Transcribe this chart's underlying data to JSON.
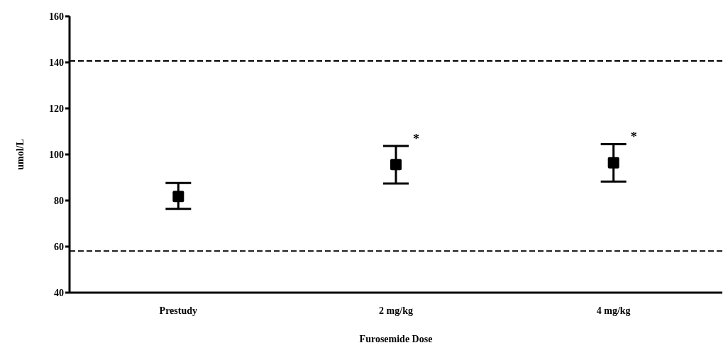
{
  "chart_data": {
    "type": "scatter",
    "xlabel": "Furosemide Dose",
    "ylabel": "umol/L",
    "categories": [
      "Prestudy",
      "2 mg/kg",
      "4 mg/kg"
    ],
    "values": [
      81.8,
      95.6,
      96.4
    ],
    "color": "#000000",
    "marker": "square",
    "errors": [
      [
        76.4,
        87.6
      ],
      [
        87.4,
        103.7
      ],
      [
        88.2,
        104.5
      ]
    ],
    "ylim": [
      40,
      160
    ],
    "yticks": [
      40,
      60,
      80,
      100,
      120,
      140,
      160
    ],
    "grid": false,
    "legend": false,
    "ref_lines": [
      {
        "axis": "y",
        "value": 140.6,
        "color": "#000000",
        "line_style": "dashed"
      },
      {
        "axis": "y",
        "value": 58.1,
        "color": "#000000",
        "line_style": "dashed"
      }
    ],
    "annotations": [
      {
        "text": "*",
        "x": "2 mg/kg",
        "y": 103.7
      },
      {
        "text": "*",
        "x": "4 mg/kg",
        "y": 104.5
      }
    ]
  }
}
